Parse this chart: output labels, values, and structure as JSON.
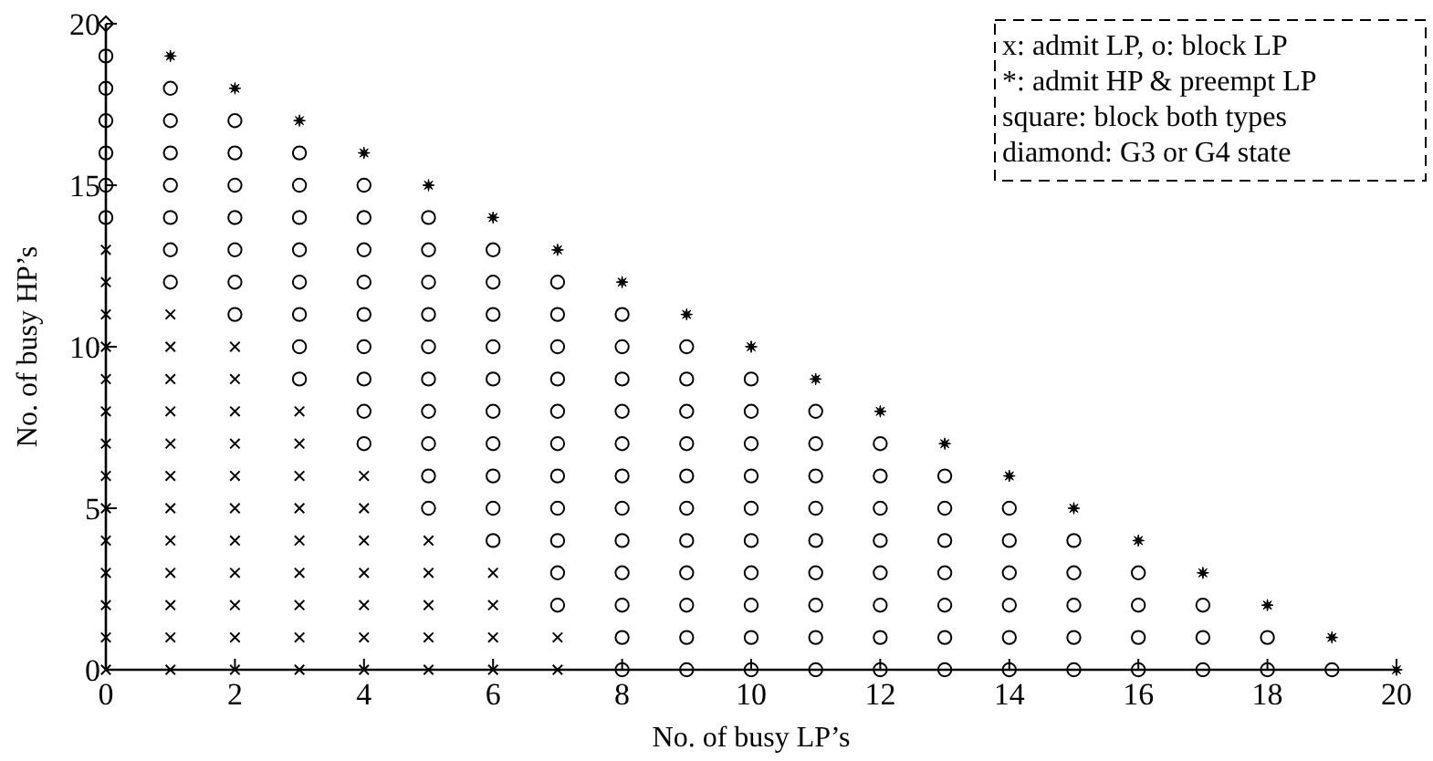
{
  "chart_data": {
    "type": "scatter",
    "xlabel": "No. of busy LP’s",
    "ylabel": "No. of busy HP’s",
    "xlim": [
      0,
      20
    ],
    "ylim": [
      0,
      20
    ],
    "xticks": [
      0,
      2,
      4,
      6,
      8,
      10,
      12,
      14,
      16,
      18,
      20
    ],
    "yticks": [
      0,
      5,
      10,
      15,
      20
    ],
    "grid": false,
    "annotations": [
      "x: admit LP, o: block LP",
      "*: admit HP & preempt LP",
      "square: block both types",
      "diamond: G3 or G4 state"
    ],
    "series": [
      {
        "color": "#000000",
        "marker": "cross",
        "x": [
          0,
          0,
          0,
          0,
          0,
          0,
          0,
          0,
          0,
          0,
          0,
          0,
          0,
          0,
          1,
          1,
          1,
          1,
          1,
          1,
          1,
          1,
          1,
          1,
          1,
          1,
          2,
          2,
          2,
          2,
          2,
          2,
          2,
          2,
          2,
          2,
          2,
          3,
          3,
          3,
          3,
          3,
          3,
          3,
          3,
          3,
          4,
          4,
          4,
          4,
          4,
          4,
          4,
          5,
          5,
          5,
          5,
          5,
          6,
          6,
          6,
          6,
          7,
          7
        ],
        "values": [
          0,
          1,
          2,
          3,
          4,
          5,
          6,
          7,
          8,
          9,
          10,
          11,
          12,
          13,
          0,
          1,
          2,
          3,
          4,
          5,
          6,
          7,
          8,
          9,
          10,
          11,
          0,
          1,
          2,
          3,
          4,
          5,
          6,
          7,
          8,
          9,
          10,
          0,
          1,
          2,
          3,
          4,
          5,
          6,
          7,
          8,
          0,
          1,
          2,
          3,
          4,
          5,
          6,
          0,
          1,
          2,
          3,
          4,
          0,
          1,
          2,
          3,
          0,
          1
        ]
      },
      {
        "color": "#000000",
        "marker": "circle",
        "x": [
          0,
          0,
          0,
          0,
          0,
          0,
          1,
          1,
          1,
          1,
          1,
          1,
          1,
          2,
          2,
          2,
          2,
          2,
          2,
          2,
          3,
          3,
          3,
          3,
          3,
          3,
          3,
          3,
          4,
          4,
          4,
          4,
          4,
          4,
          4,
          4,
          4,
          5,
          5,
          5,
          5,
          5,
          5,
          5,
          5,
          5,
          5,
          6,
          6,
          6,
          6,
          6,
          6,
          6,
          6,
          6,
          6,
          7,
          7,
          7,
          7,
          7,
          7,
          7,
          7,
          7,
          7,
          7,
          8,
          8,
          8,
          8,
          8,
          8,
          8,
          8,
          8,
          8,
          8,
          8,
          9,
          9,
          9,
          9,
          9,
          9,
          9,
          9,
          9,
          9,
          9,
          10,
          10,
          10,
          10,
          10,
          10,
          10,
          10,
          10,
          10,
          11,
          11,
          11,
          11,
          11,
          11,
          11,
          11,
          11,
          12,
          12,
          12,
          12,
          12,
          12,
          12,
          12,
          13,
          13,
          13,
          13,
          13,
          13,
          13,
          14,
          14,
          14,
          14,
          14,
          14,
          15,
          15,
          15,
          15,
          15,
          16,
          16,
          16,
          16,
          17,
          17,
          17,
          18,
          18,
          19
        ],
        "values": [
          14,
          15,
          16,
          17,
          18,
          19,
          12,
          13,
          14,
          15,
          16,
          17,
          18,
          11,
          12,
          13,
          14,
          15,
          16,
          17,
          9,
          10,
          11,
          12,
          13,
          14,
          15,
          16,
          7,
          8,
          9,
          10,
          11,
          12,
          13,
          14,
          15,
          5,
          6,
          7,
          8,
          9,
          10,
          11,
          12,
          13,
          14,
          4,
          5,
          6,
          7,
          8,
          9,
          10,
          11,
          12,
          13,
          2,
          3,
          4,
          5,
          6,
          7,
          8,
          9,
          10,
          11,
          12,
          0,
          1,
          2,
          3,
          4,
          5,
          6,
          7,
          8,
          9,
          10,
          11,
          0,
          1,
          2,
          3,
          4,
          5,
          6,
          7,
          8,
          9,
          10,
          0,
          1,
          2,
          3,
          4,
          5,
          6,
          7,
          8,
          9,
          0,
          1,
          2,
          3,
          4,
          5,
          6,
          7,
          8,
          0,
          1,
          2,
          3,
          4,
          5,
          6,
          7,
          0,
          1,
          2,
          3,
          4,
          5,
          6,
          0,
          1,
          2,
          3,
          4,
          5,
          0,
          1,
          2,
          3,
          4,
          0,
          1,
          2,
          3,
          0,
          1,
          2,
          0,
          1,
          0
        ]
      },
      {
        "color": "#000000",
        "marker": "star",
        "x": [
          1,
          2,
          3,
          4,
          5,
          6,
          7,
          8,
          9,
          10,
          11,
          12,
          13,
          14,
          15,
          16,
          17,
          18,
          19,
          20
        ],
        "values": [
          19,
          18,
          17,
          16,
          15,
          14,
          13,
          12,
          11,
          10,
          9,
          8,
          7,
          6,
          5,
          4,
          3,
          2,
          1,
          0
        ]
      },
      {
        "color": "#000000",
        "marker": "diamond",
        "x": [
          0
        ],
        "values": [
          20
        ]
      }
    ]
  }
}
